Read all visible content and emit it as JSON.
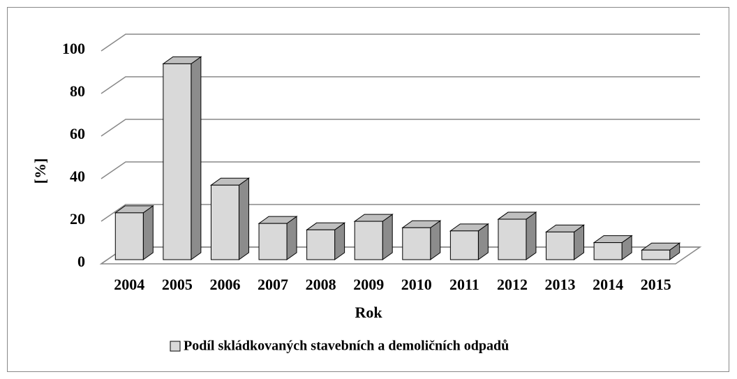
{
  "chart_data": {
    "type": "bar3d",
    "categories": [
      "2004",
      "2005",
      "2006",
      "2007",
      "2008",
      "2009",
      "2010",
      "2011",
      "2012",
      "2013",
      "2014",
      "2015"
    ],
    "series": [
      {
        "name": "Podíl skládkovaných stavebních a demoličních odpadů",
        "color": "#d9d9d9",
        "values": [
          22,
          92,
          35,
          17,
          14,
          18,
          15,
          13.5,
          19,
          13,
          8,
          4.5
        ]
      }
    ],
    "ylim": [
      0,
      100
    ],
    "yticks": [
      0,
      20,
      40,
      60,
      80,
      100
    ],
    "x_label": "Rok",
    "y_label": "[%]",
    "grid": true,
    "legend": "bottom"
  }
}
